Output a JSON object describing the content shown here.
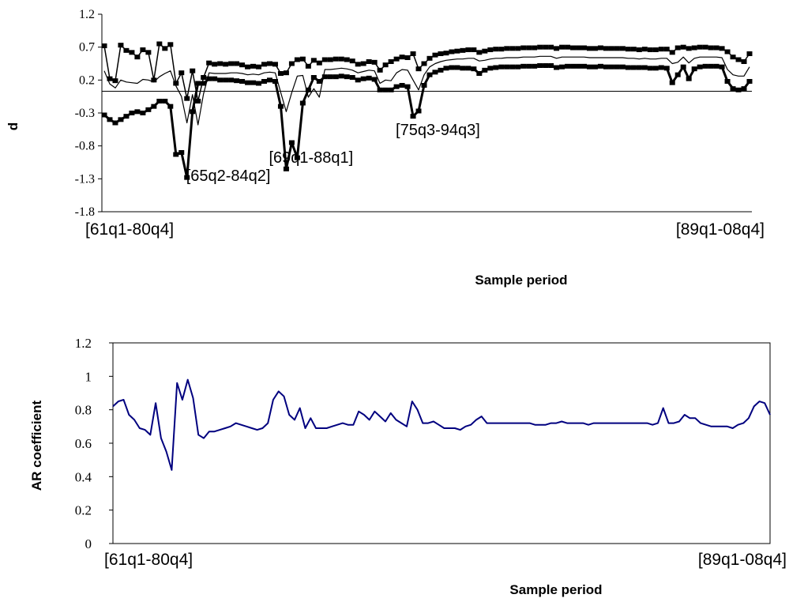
{
  "chart_data": [
    {
      "type": "line",
      "title": "",
      "xlabel": "Sample period",
      "ylabel": "d",
      "ylim": [
        -1.8,
        1.2
      ],
      "y_ticks": [
        "1.2",
        "0.7",
        "0.2",
        "-0.3",
        "-0.8",
        "-1.3",
        "-1.8"
      ],
      "x_labels": [
        {
          "label": "[61q1-80q4]",
          "index": 0
        },
        {
          "label": "[89q1-08q4]",
          "index": 112
        }
      ],
      "reference_line": 0.03,
      "annotations": [
        {
          "text": "[65q2-84q2]",
          "index": 17,
          "y": -1.25
        },
        {
          "text": "[69q1-88q1]",
          "index": 32,
          "y": -0.97
        },
        {
          "text": "[75q3-94q3]",
          "index": 55,
          "y": -0.55
        }
      ],
      "series": [
        {
          "values": [
            0.72,
            0.22,
            0.19,
            0.73,
            0.65,
            0.62,
            0.55,
            0.66,
            0.62,
            0.2,
            0.75,
            0.68,
            0.74,
            0.15,
            0.31,
            -0.08,
            0.34,
            -0.12,
            0.24,
            0.46,
            0.44,
            0.45,
            0.44,
            0.45,
            0.45,
            0.43,
            0.4,
            0.41,
            0.4,
            0.44,
            0.45,
            0.44,
            0.3,
            0.31,
            0.45,
            0.51,
            0.52,
            0.41,
            0.5,
            0.46,
            0.51,
            0.51,
            0.52,
            0.52,
            0.51,
            0.49,
            0.44,
            0.45,
            0.48,
            0.47,
            0.35,
            0.43,
            0.48,
            0.52,
            0.55,
            0.54,
            0.6,
            0.37,
            0.45,
            0.53,
            0.58,
            0.6,
            0.61,
            0.63,
            0.64,
            0.65,
            0.66,
            0.66,
            0.62,
            0.64,
            0.66,
            0.67,
            0.67,
            0.68,
            0.68,
            0.68,
            0.69,
            0.69,
            0.69,
            0.7,
            0.7,
            0.7,
            0.68,
            0.7,
            0.7,
            0.69,
            0.69,
            0.69,
            0.68,
            0.68,
            0.69,
            0.68,
            0.68,
            0.68,
            0.68,
            0.67,
            0.67,
            0.66,
            0.67,
            0.66,
            0.66,
            0.67,
            0.67,
            0.62,
            0.69,
            0.7,
            0.68,
            0.69,
            0.7,
            0.7,
            0.69,
            0.69,
            0.68,
            0.63,
            0.55,
            0.51,
            0.48,
            0.6
          ]
        },
        {
          "values": [
            0.34,
            0.14,
            0.08,
            0.2,
            0.17,
            0.16,
            0.15,
            0.21,
            0.2,
            0.17,
            0.25,
            0.3,
            0.34,
            0.11,
            -0.05,
            -0.45,
            -0.02,
            -0.48,
            -0.01,
            0.31,
            0.3,
            0.3,
            0.3,
            0.31,
            0.31,
            0.3,
            0.28,
            0.29,
            0.28,
            0.31,
            0.32,
            0.31,
            0.01,
            -0.28,
            0.01,
            0.26,
            0.27,
            -0.06,
            0.07,
            -0.06,
            0.36,
            0.36,
            0.37,
            0.38,
            0.37,
            0.35,
            0.31,
            0.33,
            0.35,
            0.34,
            0.15,
            0.2,
            0.19,
            0.31,
            0.36,
            0.35,
            0.2,
            0.05,
            0.28,
            0.4,
            0.45,
            0.48,
            0.5,
            0.51,
            0.52,
            0.52,
            0.53,
            0.53,
            0.49,
            0.5,
            0.52,
            0.53,
            0.53,
            0.54,
            0.54,
            0.54,
            0.55,
            0.55,
            0.55,
            0.56,
            0.56,
            0.56,
            0.53,
            0.55,
            0.55,
            0.55,
            0.55,
            0.55,
            0.54,
            0.54,
            0.54,
            0.54,
            0.54,
            0.54,
            0.54,
            0.53,
            0.53,
            0.52,
            0.53,
            0.52,
            0.52,
            0.53,
            0.53,
            0.45,
            0.47,
            0.55,
            0.46,
            0.53,
            0.55,
            0.55,
            0.55,
            0.55,
            0.54,
            0.36,
            0.28,
            0.26,
            0.26,
            0.4
          ]
        },
        {
          "values": [
            -0.33,
            -0.4,
            -0.45,
            -0.4,
            -0.35,
            -0.3,
            -0.28,
            -0.3,
            -0.25,
            -0.2,
            -0.12,
            -0.12,
            -0.2,
            -0.93,
            -0.9,
            -1.28,
            -0.28,
            0.15,
            0.15,
            0.22,
            0.22,
            0.2,
            0.2,
            0.2,
            0.19,
            0.18,
            0.16,
            0.16,
            0.15,
            0.18,
            0.2,
            0.18,
            -0.2,
            -1.15,
            -0.75,
            -0.98,
            -0.15,
            0.05,
            0.24,
            0.18,
            0.25,
            0.25,
            0.25,
            0.26,
            0.25,
            0.24,
            0.2,
            0.22,
            0.23,
            0.21,
            0.05,
            0.05,
            0.05,
            0.1,
            0.12,
            0.1,
            -0.35,
            -0.27,
            0.12,
            0.28,
            0.32,
            0.35,
            0.38,
            0.39,
            0.39,
            0.38,
            0.38,
            0.37,
            0.3,
            0.35,
            0.38,
            0.39,
            0.4,
            0.4,
            0.4,
            0.4,
            0.41,
            0.41,
            0.41,
            0.42,
            0.42,
            0.42,
            0.39,
            0.4,
            0.41,
            0.41,
            0.41,
            0.41,
            0.4,
            0.4,
            0.41,
            0.4,
            0.4,
            0.4,
            0.4,
            0.39,
            0.39,
            0.39,
            0.39,
            0.38,
            0.38,
            0.39,
            0.38,
            0.16,
            0.28,
            0.4,
            0.22,
            0.37,
            0.4,
            0.41,
            0.41,
            0.41,
            0.4,
            0.18,
            0.07,
            0.05,
            0.07,
            0.18
          ]
        }
      ]
    },
    {
      "type": "line",
      "title": "",
      "xlabel": "Sample period",
      "ylabel": "AR coefficient",
      "ylim": [
        0,
        1.2
      ],
      "y_ticks": [
        "1.2",
        "1",
        "0.8",
        "0.6",
        "0.4",
        "0.2",
        "0"
      ],
      "x_labels": [
        {
          "label": "[61q1-80q4]",
          "index": 0
        },
        {
          "label": "[89q1-08q4]",
          "index": 112
        }
      ],
      "line_color": "#00007f",
      "series": [
        {
          "values": [
            0.82,
            0.85,
            0.86,
            0.77,
            0.74,
            0.69,
            0.68,
            0.65,
            0.84,
            0.63,
            0.55,
            0.44,
            0.96,
            0.86,
            0.98,
            0.87,
            0.65,
            0.63,
            0.67,
            0.67,
            0.68,
            0.69,
            0.7,
            0.72,
            0.71,
            0.7,
            0.69,
            0.68,
            0.69,
            0.72,
            0.86,
            0.91,
            0.88,
            0.77,
            0.74,
            0.81,
            0.69,
            0.75,
            0.69,
            0.69,
            0.69,
            0.7,
            0.71,
            0.72,
            0.71,
            0.71,
            0.79,
            0.77,
            0.74,
            0.79,
            0.76,
            0.73,
            0.78,
            0.74,
            0.72,
            0.7,
            0.85,
            0.8,
            0.72,
            0.72,
            0.73,
            0.71,
            0.69,
            0.69,
            0.69,
            0.68,
            0.7,
            0.71,
            0.74,
            0.76,
            0.72,
            0.72,
            0.72,
            0.72,
            0.72,
            0.72,
            0.72,
            0.72,
            0.72,
            0.71,
            0.71,
            0.71,
            0.72,
            0.72,
            0.73,
            0.72,
            0.72,
            0.72,
            0.72,
            0.71,
            0.72,
            0.72,
            0.72,
            0.72,
            0.72,
            0.72,
            0.72,
            0.72,
            0.72,
            0.72,
            0.72,
            0.71,
            0.72,
            0.81,
            0.72,
            0.72,
            0.73,
            0.77,
            0.75,
            0.75,
            0.72,
            0.71,
            0.7,
            0.7,
            0.7,
            0.7,
            0.69,
            0.71,
            0.72,
            0.75,
            0.82,
            0.85,
            0.84,
            0.77
          ]
        }
      ]
    }
  ]
}
